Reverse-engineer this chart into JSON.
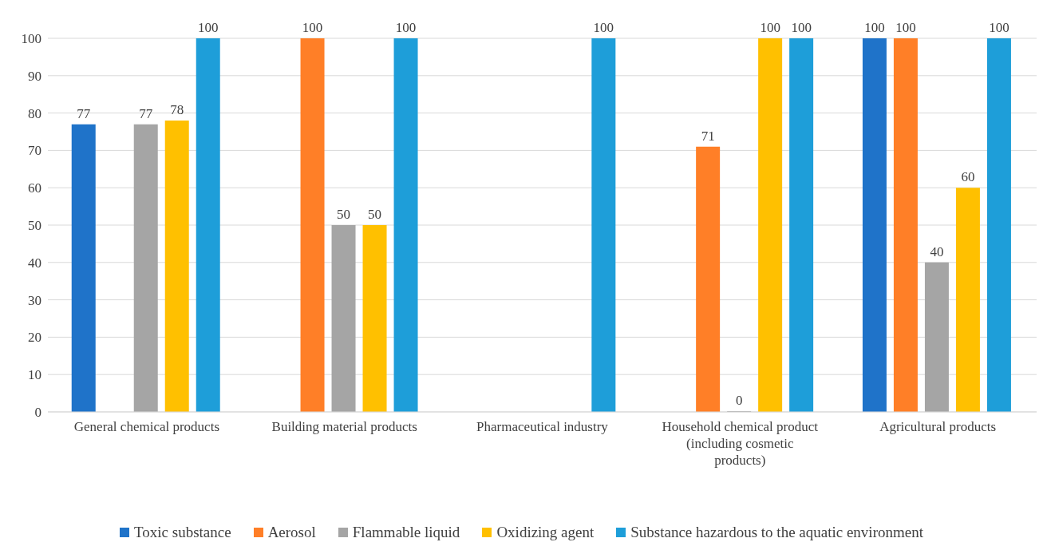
{
  "chart_data": {
    "type": "bar",
    "categories": [
      "General chemical products",
      "Building material products",
      "Pharmaceutical industry",
      "Household chemical product (including cosmetic products)",
      "Agricultural products"
    ],
    "series": [
      {
        "name": "Toxic substance",
        "color": "#1f73c9",
        "values": [
          77,
          null,
          null,
          null,
          100
        ]
      },
      {
        "name": "Aerosol",
        "color": "#ff7f27",
        "values": [
          null,
          100,
          null,
          71,
          100
        ]
      },
      {
        "name": "Flammable liquid",
        "color": "#a5a5a5",
        "values": [
          77,
          50,
          null,
          0,
          40
        ]
      },
      {
        "name": "Oxidizing agent",
        "color": "#ffc000",
        "values": [
          78,
          50,
          null,
          100,
          60
        ]
      },
      {
        "name": "Substance hazardous to the aquatic environment",
        "color": "#1e9ed9",
        "values": [
          100,
          100,
          100,
          100,
          100
        ]
      }
    ],
    "ylim": [
      0,
      100
    ],
    "yticks": [
      0,
      10,
      20,
      30,
      40,
      50,
      60,
      70,
      80,
      90,
      100
    ],
    "grid": "y",
    "legend": "bottom",
    "data_labels": true
  }
}
